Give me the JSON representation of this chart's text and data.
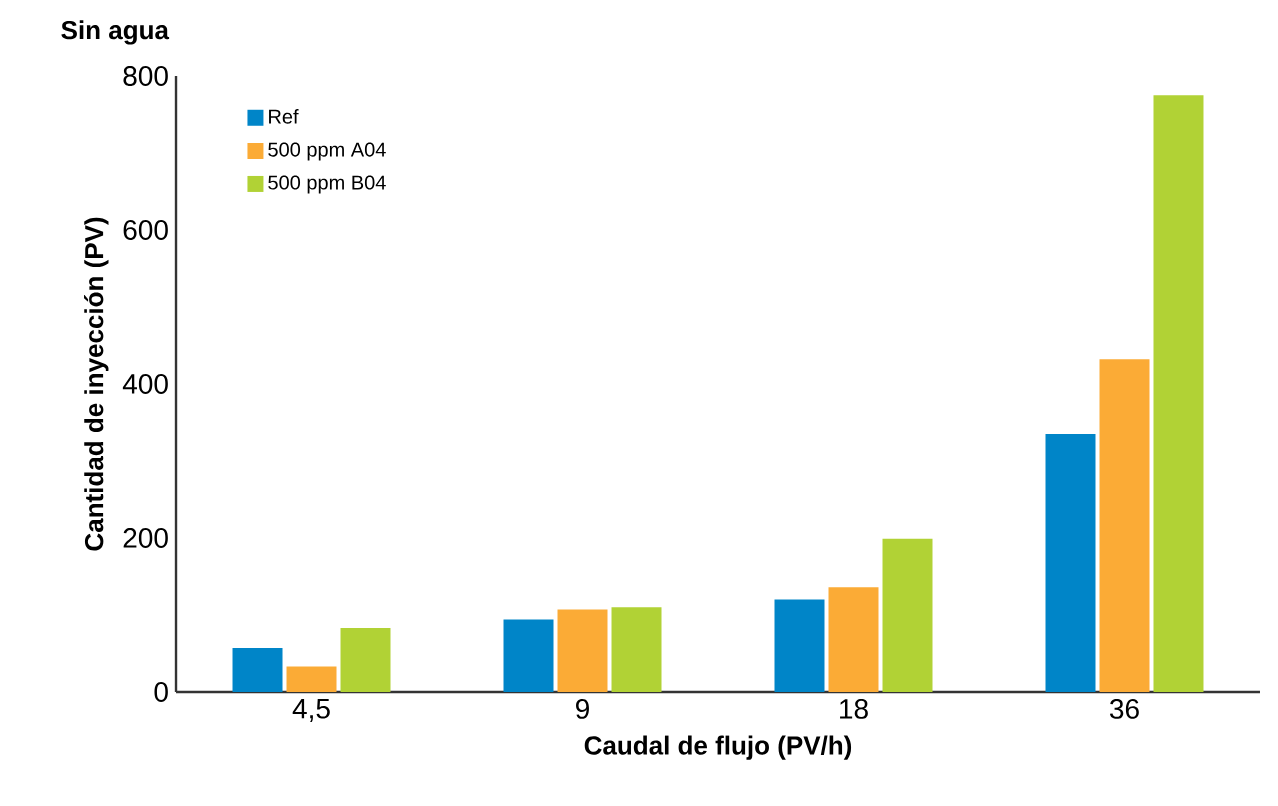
{
  "chart_data": {
    "type": "bar",
    "title": "Sin agua",
    "xlabel": "Caudal de flujo (PV/h)",
    "ylabel": "Cantidad de inyección (PV)",
    "categories": [
      "4,5",
      "9",
      "18",
      "36"
    ],
    "series": [
      {
        "name": "Ref",
        "color": "#0085c8",
        "values": [
          57,
          94,
          120,
          335
        ]
      },
      {
        "name": "500 ppm A04",
        "color": "#fbab36",
        "values": [
          33,
          107,
          136,
          432
        ]
      },
      {
        "name": "500 ppm B04",
        "color": "#b1d235",
        "values": [
          83,
          110,
          199,
          775
        ]
      }
    ],
    "ylim": [
      0,
      800
    ],
    "yticks": [
      0,
      200,
      400,
      600,
      800
    ],
    "grid": false,
    "legend": "top left"
  }
}
